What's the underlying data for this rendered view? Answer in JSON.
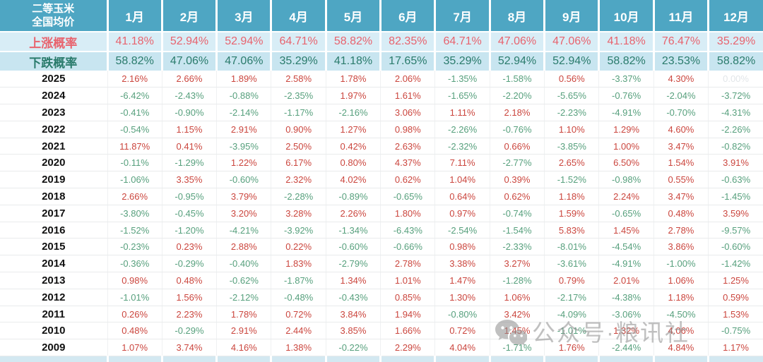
{
  "chart_data": {
    "type": "table",
    "title_lines": [
      "二等玉米",
      "全国均价"
    ],
    "columns": [
      "1月",
      "2月",
      "3月",
      "4月",
      "5月",
      "6月",
      "7月",
      "8月",
      "9月",
      "10月",
      "11月",
      "12月"
    ],
    "value_unit": "percent",
    "probability_rows": [
      {
        "id": "rise",
        "label": "上涨概率",
        "values": [
          41.18,
          52.94,
          52.94,
          64.71,
          58.82,
          82.35,
          64.71,
          47.06,
          47.06,
          41.18,
          76.47,
          35.29
        ]
      },
      {
        "id": "fall",
        "label": "下跌概率",
        "values": [
          58.82,
          47.06,
          47.06,
          35.29,
          41.18,
          17.65,
          35.29,
          52.94,
          52.94,
          58.82,
          23.53,
          58.82
        ]
      }
    ],
    "rows": [
      {
        "year": "2025",
        "values": [
          2.16,
          2.66,
          1.89,
          2.58,
          1.78,
          2.06,
          -1.35,
          -1.58,
          0.56,
          -3.37,
          4.3,
          0.0
        ]
      },
      {
        "year": "2024",
        "values": [
          -6.42,
          -2.43,
          -0.88,
          -2.35,
          1.97,
          1.61,
          -1.65,
          -2.2,
          -5.65,
          -0.76,
          -2.04,
          -3.72
        ]
      },
      {
        "year": "2023",
        "values": [
          -0.41,
          -0.9,
          -2.14,
          -1.17,
          -2.16,
          3.06,
          1.11,
          2.18,
          -2.23,
          -4.91,
          -0.7,
          -4.31
        ]
      },
      {
        "year": "2022",
        "values": [
          -0.54,
          1.15,
          2.91,
          0.9,
          1.27,
          0.98,
          -2.26,
          -0.76,
          1.1,
          1.29,
          4.6,
          -2.26
        ]
      },
      {
        "year": "2021",
        "values": [
          11.87,
          0.41,
          -3.95,
          2.5,
          0.42,
          2.63,
          -2.32,
          0.66,
          -3.85,
          1.0,
          3.47,
          -0.82
        ]
      },
      {
        "year": "2020",
        "values": [
          -0.11,
          -1.29,
          1.22,
          6.17,
          0.8,
          4.37,
          7.11,
          -2.77,
          2.65,
          6.5,
          1.54,
          3.91
        ]
      },
      {
        "year": "2019",
        "values": [
          -1.06,
          3.35,
          -0.6,
          2.32,
          4.02,
          0.62,
          1.04,
          0.39,
          -1.52,
          -0.98,
          0.55,
          -0.63
        ]
      },
      {
        "year": "2018",
        "values": [
          2.66,
          -0.95,
          3.79,
          -2.28,
          -0.89,
          -0.65,
          0.64,
          0.62,
          1.18,
          2.24,
          3.47,
          -1.45
        ]
      },
      {
        "year": "2017",
        "values": [
          -3.8,
          -0.45,
          3.2,
          3.28,
          2.26,
          1.8,
          0.97,
          -0.74,
          1.59,
          -0.65,
          0.48,
          3.59
        ]
      },
      {
        "year": "2016",
        "values": [
          -1.52,
          -1.2,
          -4.21,
          -3.92,
          -1.34,
          -6.43,
          -2.54,
          -1.54,
          5.83,
          1.45,
          2.78,
          -9.57
        ]
      },
      {
        "year": "2015",
        "values": [
          -0.23,
          0.23,
          2.88,
          0.22,
          -0.6,
          -0.66,
          0.98,
          -2.33,
          -8.01,
          -4.54,
          3.86,
          -0.6
        ]
      },
      {
        "year": "2014",
        "values": [
          -0.36,
          -0.29,
          -0.4,
          1.83,
          -2.79,
          2.78,
          3.38,
          3.27,
          -3.61,
          -4.91,
          -1.0,
          -1.42
        ]
      },
      {
        "year": "2013",
        "values": [
          0.98,
          0.48,
          -0.62,
          -1.87,
          1.34,
          1.01,
          1.47,
          -1.28,
          0.79,
          2.01,
          1.06,
          1.25
        ]
      },
      {
        "year": "2012",
        "values": [
          -1.01,
          1.56,
          -2.12,
          -0.48,
          -0.43,
          0.85,
          1.3,
          1.06,
          -2.17,
          -4.38,
          1.18,
          0.59
        ]
      },
      {
        "year": "2011",
        "values": [
          0.26,
          2.23,
          1.78,
          0.72,
          3.84,
          1.94,
          -0.8,
          3.42,
          -4.09,
          -3.06,
          -4.5,
          1.53
        ]
      },
      {
        "year": "2010",
        "values": [
          0.48,
          -0.29,
          2.91,
          2.44,
          3.85,
          1.66,
          0.72,
          1.45,
          -1.01,
          1.32,
          4.06,
          -0.75
        ]
      },
      {
        "year": "2009",
        "values": [
          1.07,
          3.74,
          4.16,
          1.38,
          -0.22,
          2.29,
          4.04,
          -1.71,
          1.76,
          -2.44,
          4.84,
          1.17
        ]
      }
    ]
  },
  "watermark": {
    "text": "公众号·粮讯社",
    "icon": "wechat-icon"
  },
  "colors": {
    "header_bg": "#4ea6c3",
    "rise_bg": "#d8edf6",
    "fall_bg": "#c8e5f0",
    "strip_bg": "#d3e8f1",
    "rise_text": "#e8636e",
    "fall_text": "#2a7b6c",
    "positive": "#cb463e",
    "negative": "#57a07d",
    "zero": "#e2e6e9",
    "watermark": "#8e8e8e"
  }
}
